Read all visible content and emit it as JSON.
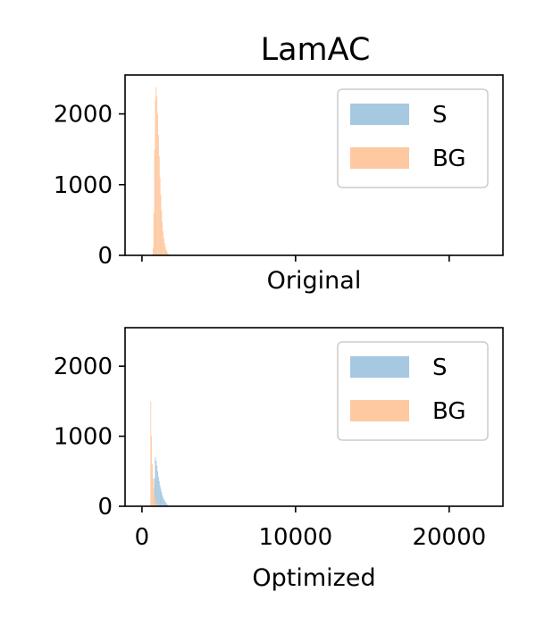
{
  "chart_data": {
    "type": "histogram",
    "title": "LamAC",
    "x_range": [
      -1100,
      23500
    ],
    "x_ticks": [
      0,
      10000,
      20000
    ],
    "y_range": [
      0,
      2550
    ],
    "y_ticks": [
      0,
      1000,
      2000
    ],
    "legend_position": "upper right",
    "colors": {
      "S": "#a6c8e0",
      "BG": "#fec9a0"
    },
    "panels": [
      {
        "xlabel": "Original",
        "show_x_tick_labels": false,
        "legend": [
          "S",
          "BG"
        ],
        "series": [
          {
            "name": "S",
            "bins": []
          },
          {
            "name": "BG",
            "bins": [
              [
                700,
                100
              ],
              [
                750,
                600
              ],
              [
                800,
                1500
              ],
              [
                850,
                2200
              ],
              [
                900,
                2380
              ],
              [
                950,
                2250
              ],
              [
                1000,
                2000
              ],
              [
                1050,
                1700
              ],
              [
                1100,
                1400
              ],
              [
                1150,
                1100
              ],
              [
                1200,
                850
              ],
              [
                1250,
                640
              ],
              [
                1300,
                470
              ],
              [
                1350,
                340
              ],
              [
                1400,
                240
              ],
              [
                1450,
                170
              ],
              [
                1500,
                120
              ],
              [
                1550,
                80
              ],
              [
                1600,
                55
              ],
              [
                1650,
                35
              ],
              [
                1700,
                22
              ],
              [
                1750,
                14
              ],
              [
                1800,
                8
              ],
              [
                1850,
                5
              ]
            ]
          }
        ]
      },
      {
        "xlabel": "Optimized",
        "show_x_tick_labels": true,
        "legend": [
          "S",
          "BG"
        ],
        "series": [
          {
            "name": "S",
            "bins": [
              [
                750,
                150
              ],
              [
                800,
                400
              ],
              [
                850,
                700
              ],
              [
                900,
                650
              ],
              [
                950,
                580
              ],
              [
                1000,
                500
              ],
              [
                1050,
                420
              ],
              [
                1100,
                360
              ],
              [
                1150,
                300
              ],
              [
                1200,
                250
              ],
              [
                1250,
                200
              ],
              [
                1300,
                160
              ],
              [
                1350,
                130
              ],
              [
                1400,
                100
              ],
              [
                1450,
                80
              ],
              [
                1500,
                60
              ],
              [
                1550,
                45
              ],
              [
                1600,
                30
              ],
              [
                1650,
                20
              ],
              [
                1700,
                12
              ]
            ]
          },
          {
            "name": "BG",
            "bins": [
              [
                550,
                1500
              ],
              [
                600,
                1000
              ],
              [
                650,
                600
              ],
              [
                700,
                400
              ],
              [
                750,
                250
              ],
              [
                800,
                150
              ],
              [
                850,
                90
              ],
              [
                900,
                50
              ],
              [
                950,
                25
              ]
            ]
          }
        ]
      }
    ]
  }
}
